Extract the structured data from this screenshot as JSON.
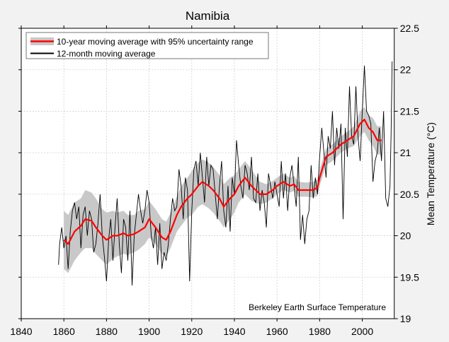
{
  "chart_data": {
    "type": "line",
    "title": "Namibia",
    "xlabel": "",
    "ylabel": "Mean Temperature (°C)",
    "xlim": [
      1840,
      2015
    ],
    "ylim": [
      19,
      22.5
    ],
    "xticks": [
      "1840",
      "1860",
      "1880",
      "1900",
      "1920",
      "1940",
      "1960",
      "1980",
      "2000"
    ],
    "yticks": [
      "19",
      "19.5",
      "20",
      "20.5",
      "21",
      "21.5",
      "22",
      "22.5"
    ],
    "grid": true,
    "y_axis_side": "right",
    "legend_position": "top-left",
    "annotation": "Berkeley Earth Surface Temperature",
    "colors": {
      "ten_year": "#ff0000",
      "band": "#c8c8c8",
      "twelve_month": "#000000",
      "background": "#f2f2f2"
    },
    "series": [
      {
        "name": "10-year moving average with 95% uncertainty range",
        "x": [
          1860,
          1862,
          1865,
          1868,
          1870,
          1873,
          1875,
          1878,
          1880,
          1883,
          1885,
          1888,
          1890,
          1893,
          1895,
          1898,
          1900,
          1903,
          1906,
          1908,
          1910,
          1913,
          1915,
          1918,
          1920,
          1923,
          1925,
          1928,
          1930,
          1933,
          1935,
          1938,
          1940,
          1942,
          1945,
          1948,
          1950,
          1952,
          1955,
          1958,
          1960,
          1963,
          1966,
          1968,
          1970,
          1974,
          1977,
          1979,
          1980,
          1983,
          1986,
          1988,
          1990,
          1993,
          1996,
          1999,
          2001,
          2003,
          2005,
          2007,
          2009
        ],
        "values": [
          19.95,
          19.9,
          20.05,
          20.12,
          20.2,
          20.18,
          20.1,
          20.0,
          19.95,
          20.0,
          20.0,
          20.03,
          20.0,
          20.02,
          20.05,
          20.1,
          20.2,
          20.1,
          19.98,
          19.95,
          20.05,
          20.25,
          20.35,
          20.45,
          20.5,
          20.6,
          20.65,
          20.6,
          20.55,
          20.45,
          20.35,
          20.45,
          20.5,
          20.6,
          20.7,
          20.6,
          20.55,
          20.5,
          20.5,
          20.55,
          20.6,
          20.65,
          20.6,
          20.62,
          20.55,
          20.55,
          20.55,
          20.58,
          20.7,
          20.95,
          21.0,
          21.05,
          21.1,
          21.15,
          21.2,
          21.35,
          21.4,
          21.3,
          21.25,
          21.15,
          21.15
        ],
        "lower": [
          19.6,
          19.55,
          19.7,
          19.8,
          19.85,
          19.85,
          19.78,
          19.7,
          19.65,
          19.72,
          19.75,
          19.78,
          19.77,
          19.8,
          19.83,
          19.9,
          19.98,
          19.9,
          19.78,
          19.75,
          19.85,
          20.05,
          20.12,
          20.22,
          20.25,
          20.35,
          20.38,
          20.33,
          20.28,
          20.18,
          20.1,
          20.2,
          20.28,
          20.4,
          20.5,
          20.42,
          20.4,
          20.38,
          20.4,
          20.45,
          20.5,
          20.55,
          20.52,
          20.54,
          20.47,
          20.47,
          20.46,
          20.48,
          20.6,
          20.85,
          20.9,
          20.95,
          21.0,
          21.05,
          21.08,
          21.2,
          21.25,
          21.15,
          21.08,
          20.98,
          20.98
        ],
        "upper": [
          20.3,
          20.25,
          20.4,
          20.45,
          20.55,
          20.52,
          20.45,
          20.32,
          20.28,
          20.3,
          20.28,
          20.3,
          20.25,
          20.25,
          20.3,
          20.32,
          20.42,
          20.32,
          20.2,
          20.17,
          20.27,
          20.47,
          20.6,
          20.7,
          20.78,
          20.88,
          20.92,
          20.88,
          20.83,
          20.73,
          20.62,
          20.7,
          20.73,
          20.8,
          20.9,
          20.8,
          20.72,
          20.65,
          20.62,
          20.66,
          20.7,
          20.75,
          20.7,
          20.72,
          20.65,
          20.64,
          20.65,
          20.68,
          20.8,
          21.05,
          21.1,
          21.15,
          21.2,
          21.25,
          21.32,
          21.5,
          21.55,
          21.45,
          21.42,
          21.32,
          21.32
        ]
      },
      {
        "name": "12-month moving average",
        "x": [
          1857.5,
          1858,
          1859,
          1860,
          1861,
          1862,
          1863,
          1864,
          1865,
          1866,
          1867,
          1868,
          1869,
          1870,
          1871,
          1872,
          1873,
          1874,
          1875,
          1876,
          1877,
          1878,
          1879,
          1880,
          1881,
          1882,
          1883,
          1884,
          1885,
          1886,
          1887,
          1888,
          1889,
          1890,
          1891,
          1892,
          1893,
          1894,
          1895,
          1896,
          1897,
          1898,
          1899,
          1900,
          1901,
          1902,
          1903,
          1904,
          1905,
          1906,
          1907,
          1908,
          1909,
          1910,
          1911,
          1912,
          1913,
          1914,
          1915,
          1916,
          1917,
          1918,
          1919,
          1920,
          1921,
          1922,
          1923,
          1924,
          1925,
          1926,
          1927,
          1928,
          1929,
          1930,
          1931,
          1932,
          1933,
          1934,
          1935,
          1936,
          1937,
          1938,
          1939,
          1940,
          1941,
          1942,
          1943,
          1944,
          1945,
          1946,
          1947,
          1948,
          1949,
          1950,
          1951,
          1952,
          1953,
          1954,
          1955,
          1956,
          1957,
          1958,
          1959,
          1960,
          1961,
          1962,
          1963,
          1964,
          1965,
          1966,
          1967,
          1968,
          1969,
          1970,
          1971,
          1972,
          1973,
          1974,
          1975,
          1976,
          1977,
          1978,
          1979,
          1980,
          1981,
          1982,
          1983,
          1984,
          1985,
          1986,
          1987,
          1988,
          1989,
          1990,
          1991,
          1992,
          1993,
          1994,
          1995,
          1996,
          1997,
          1998,
          1999,
          2000,
          2001,
          2002,
          2003,
          2004,
          2005,
          2006,
          2007,
          2008,
          2009,
          2010,
          2011,
          2012,
          2013,
          2013.5,
          2014
        ],
        "values": [
          19.65,
          19.9,
          20.1,
          19.85,
          20.0,
          19.6,
          20.05,
          20.3,
          20.4,
          20.2,
          20.35,
          19.85,
          20.25,
          20.35,
          20.0,
          20.3,
          20.2,
          19.8,
          19.9,
          20.15,
          20.5,
          20.0,
          19.75,
          19.45,
          19.95,
          20.2,
          19.7,
          20.1,
          20.45,
          19.9,
          19.55,
          20.2,
          20.1,
          19.7,
          20.3,
          19.4,
          20.0,
          20.25,
          20.5,
          20.3,
          20.15,
          20.3,
          20.55,
          20.4,
          20.0,
          19.85,
          20.1,
          19.65,
          20.15,
          19.6,
          19.8,
          19.7,
          19.9,
          20.2,
          20.45,
          20.3,
          20.35,
          20.8,
          20.6,
          20.2,
          20.7,
          20.55,
          19.45,
          20.3,
          20.8,
          20.9,
          20.6,
          21.0,
          20.7,
          20.4,
          20.95,
          20.6,
          20.85,
          20.8,
          20.5,
          20.2,
          20.6,
          20.9,
          20.3,
          20.1,
          20.6,
          20.05,
          20.7,
          20.5,
          21.15,
          20.85,
          20.6,
          20.45,
          20.85,
          20.75,
          20.55,
          20.95,
          20.45,
          20.4,
          20.75,
          20.3,
          20.55,
          20.4,
          20.1,
          20.75,
          20.6,
          20.45,
          20.65,
          20.5,
          20.35,
          20.9,
          20.45,
          20.75,
          20.3,
          20.7,
          20.85,
          20.6,
          20.35,
          20.95,
          19.95,
          20.25,
          19.9,
          20.2,
          20.3,
          20.85,
          20.45,
          20.7,
          20.5,
          20.95,
          21.3,
          21.0,
          20.7,
          21.2,
          21.05,
          21.5,
          20.85,
          21.3,
          21.05,
          21.35,
          20.2,
          21.3,
          20.95,
          21.8,
          21.2,
          21.1,
          21.8,
          21.2,
          20.9,
          21.5,
          22.05,
          21.5,
          21.45,
          21.35,
          20.65,
          20.9,
          21.0,
          21.3,
          20.9,
          21.5,
          20.45,
          20.35,
          20.6,
          21.2,
          22.1
        ]
      }
    ]
  }
}
